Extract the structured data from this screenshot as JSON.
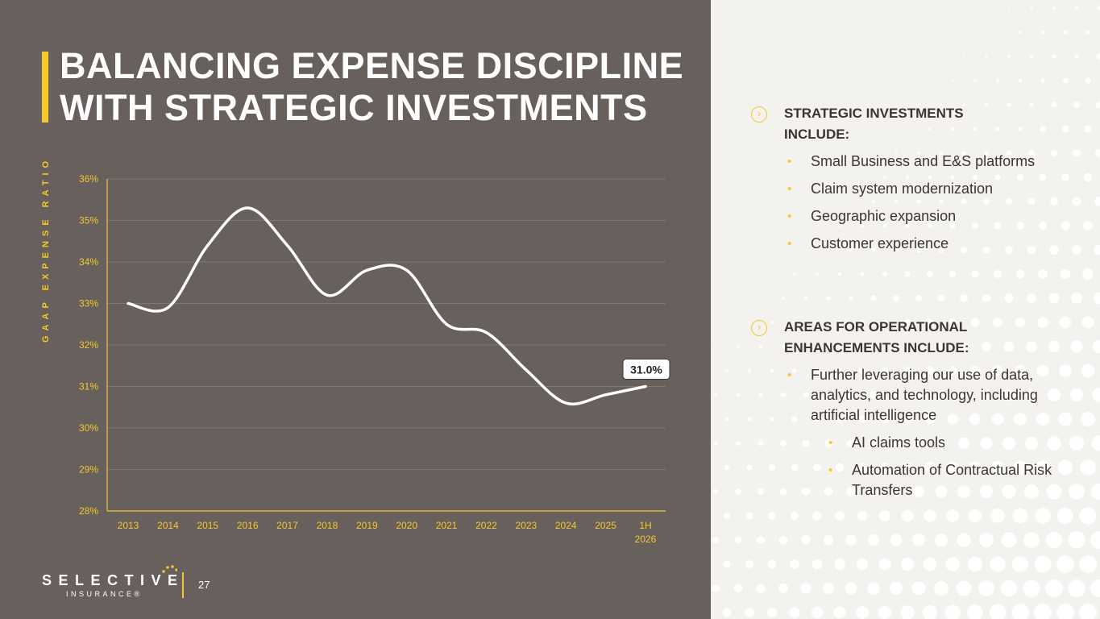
{
  "slide": {
    "title_lines": [
      "BALANCING EXPENSE DISCIPLINE",
      "WITH STRATEGIC INVESTMENTS"
    ],
    "page_number": "27",
    "colors": {
      "left_panel": "#67605c",
      "right_panel": "#f4f2ef",
      "accent": "#f5c82e",
      "line": "#ffffff",
      "text_dark": "#3b3533"
    }
  },
  "logo": {
    "wordmark": "SELECTIVE",
    "subline": "INSURANCE®"
  },
  "chart_data": {
    "type": "line",
    "ylabel": "GAAP EXPENSE RATIO",
    "xlabel": "",
    "x": [
      "2013",
      "2014",
      "2015",
      "2016",
      "2017",
      "2018",
      "2019",
      "2020",
      "2021",
      "2022",
      "2023",
      "2024",
      "2025",
      "1H 2026"
    ],
    "series": [
      {
        "values": [
          33.0,
          32.9,
          34.4,
          35.3,
          34.4,
          33.2,
          33.8,
          33.8,
          32.5,
          32.3,
          31.4,
          30.6,
          30.8,
          31.0
        ]
      }
    ],
    "ylim": [
      28,
      36
    ],
    "y_ticks": [
      "28%",
      "29%",
      "30%",
      "31%",
      "32%",
      "33%",
      "34%",
      "35%",
      "36%"
    ],
    "grid": true,
    "annotation": {
      "text": "31.0%",
      "category": "1H 2026",
      "value": 31.0
    }
  },
  "sections": [
    {
      "heading": "STRATEGIC INVESTMENTS INCLUDE:",
      "icon": "chevron-right-circle-icon",
      "items": [
        {
          "text": "Small Business and E&S platforms",
          "level": 1
        },
        {
          "text": "Claim system modernization",
          "level": 1
        },
        {
          "text": "Geographic expansion",
          "level": 1
        },
        {
          "text": "Customer experience",
          "level": 1
        }
      ]
    },
    {
      "heading": "AREAS FOR OPERATIONAL ENHANCEMENTS INCLUDE:",
      "icon": "chevron-right-circle-icon",
      "items": [
        {
          "text": "Further leveraging our use of data, analytics, and technology, including artificial intelligence",
          "level": 1
        },
        {
          "text": "AI claims tools",
          "level": 2
        },
        {
          "text": "Automation of Contractual Risk Transfers",
          "level": 2
        }
      ]
    }
  ]
}
